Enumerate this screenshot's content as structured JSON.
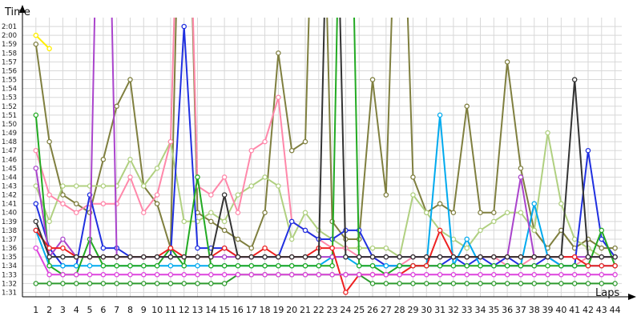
{
  "chart_data": {
    "type": "line",
    "ylabel": "Time",
    "xlabel": "Laps",
    "y_tick_labels": [
      "1:31",
      "1:32",
      "1:33",
      "1:34",
      "1:35",
      "1:36",
      "1:37",
      "1:38",
      "1:39",
      "1:40",
      "1:41",
      "1:42",
      "1:43",
      "1:44",
      "1:45",
      "1:46",
      "1:47",
      "1:48",
      "1:49",
      "1:50",
      "1:51",
      "1:52",
      "1:53",
      "1:54",
      "1:55",
      "1:56",
      "1:57",
      "1:58",
      "1:59",
      "2:00",
      "2:01"
    ],
    "x_tick_labels": [
      "1",
      "2",
      "3",
      "4",
      "5",
      "6",
      "7",
      "8",
      "9",
      "10",
      "11",
      "12",
      "13",
      "14",
      "15",
      "16",
      "17",
      "18",
      "19",
      "20",
      "21",
      "22",
      "23",
      "24",
      "25",
      "26",
      "27",
      "28",
      "29",
      "30",
      "31",
      "32",
      "33",
      "34",
      "35",
      "36",
      "37",
      "38",
      "39",
      "40",
      "41",
      "42",
      "43",
      "44"
    ],
    "ylim_seconds": [
      90.5,
      122
    ],
    "xlim": [
      0,
      44.5
    ],
    "grid": true,
    "marker": "hollow-circle",
    "series": [
      {
        "color": "#ffee00",
        "values": [
          120,
          118.5,
          null,
          null,
          null,
          null,
          null,
          null,
          null,
          null,
          null,
          null,
          null,
          null,
          null,
          null,
          null,
          null,
          null,
          null,
          null,
          null,
          null,
          null,
          null,
          null,
          null,
          null,
          null,
          null,
          null,
          null,
          null,
          null,
          null,
          null,
          null,
          null,
          null,
          null,
          null,
          null,
          null,
          null
        ]
      },
      {
        "color": "#7f7f3f",
        "values": [
          119,
          108,
          102,
          101,
          100,
          106,
          112,
          115,
          103,
          101,
          96,
          160,
          100,
          99,
          98,
          97,
          96,
          100,
          118,
          107,
          108,
          160,
          99,
          97,
          97,
          115,
          102,
          150,
          104,
          100,
          101,
          100,
          112,
          100,
          100,
          117,
          105,
          98,
          96,
          98,
          96,
          97,
          96,
          96
        ]
      },
      {
        "color": "#b0d080",
        "values": [
          103,
          99,
          103,
          103,
          103,
          103,
          103,
          106,
          103,
          105,
          108,
          99,
          99,
          100,
          99,
          102,
          103,
          104,
          103,
          97,
          100,
          98,
          97,
          96,
          96,
          96,
          96,
          95,
          102,
          100,
          98,
          97,
          96,
          98,
          99,
          100,
          100,
          98,
          109,
          101,
          97,
          96,
          95,
          95
        ]
      },
      {
        "color": "#ff88aa",
        "values": [
          107,
          102,
          101,
          100,
          101,
          101,
          101,
          104,
          100,
          102,
          108,
          160,
          103,
          102,
          104,
          100,
          107,
          108,
          113,
          99,
          98,
          97,
          96,
          96,
          95,
          95,
          94,
          94,
          95,
          95,
          95,
          95,
          95,
          95,
          95,
          94,
          94,
          95,
          95,
          94,
          94,
          95,
          95,
          95
        ]
      },
      {
        "color": "#2030e0",
        "values": [
          101,
          96,
          94,
          94,
          102,
          96,
          96,
          95,
          95,
          95,
          95,
          121,
          96,
          96,
          96,
          95,
          95,
          95,
          95,
          99,
          98,
          97,
          97,
          98,
          98,
          95,
          94,
          94,
          94,
          94,
          94,
          95,
          94,
          95,
          94,
          95,
          94,
          94,
          95,
          94,
          94,
          107,
          97,
          95
        ]
      },
      {
        "color": "#00aaee",
        "values": [
          98,
          94,
          94,
          94,
          94,
          94,
          94,
          94,
          94,
          94,
          94,
          94,
          94,
          94,
          94,
          94,
          94,
          94,
          94,
          94,
          94,
          94,
          95,
          95,
          94,
          94,
          94,
          94,
          94,
          94,
          111,
          94,
          97,
          94,
          94,
          94,
          94,
          101,
          95,
          94,
          94,
          94,
          94,
          94
        ]
      },
      {
        "color": "#22aa22",
        "values": [
          111,
          94,
          93,
          93,
          97,
          94,
          94,
          94,
          94,
          94,
          96,
          94,
          104,
          94,
          94,
          94,
          94,
          94,
          94,
          94,
          94,
          94,
          94,
          170,
          94,
          94,
          93,
          94,
          94,
          94,
          94,
          94,
          94,
          94,
          94,
          94,
          94,
          94,
          94,
          94,
          94,
          94,
          98,
          94
        ]
      },
      {
        "color": "#aa44cc",
        "values": [
          105,
          95,
          97,
          95,
          95,
          170,
          95,
          95,
          95,
          95,
          95,
          95,
          95,
          95,
          95,
          95,
          95,
          95,
          95,
          95,
          95,
          95,
          95,
          95,
          95,
          95,
          95,
          95,
          95,
          95,
          95,
          95,
          95,
          95,
          95,
          95,
          104,
          95,
          95,
          95,
          95,
          95,
          95,
          95
        ]
      },
      {
        "color": "#ee2020",
        "values": [
          98,
          96,
          96,
          95,
          95,
          95,
          95,
          95,
          95,
          95,
          96,
          95,
          95,
          95,
          96,
          95,
          95,
          96,
          95,
          95,
          95,
          96,
          96,
          91,
          93,
          93,
          93,
          93,
          94,
          94,
          98,
          95,
          95,
          95,
          95,
          95,
          95,
          95,
          95,
          95,
          95,
          94,
          94,
          94
        ]
      },
      {
        "color": "#333333",
        "values": [
          99,
          95,
          95,
          95,
          95,
          95,
          95,
          95,
          95,
          95,
          95,
          95,
          95,
          95,
          102,
          95,
          95,
          95,
          95,
          95,
          95,
          95,
          160,
          95,
          95,
          95,
          95,
          95,
          95,
          95,
          95,
          95,
          95,
          95,
          95,
          95,
          95,
          95,
          95,
          95,
          115,
          95,
          95,
          95
        ]
      },
      {
        "color": "#2d9a2d",
        "values": [
          92,
          92,
          92,
          92,
          92,
          92,
          92,
          92,
          92,
          92,
          92,
          92,
          92,
          92,
          92,
          93,
          93,
          93,
          93,
          93,
          93,
          93,
          93,
          93,
          93,
          92,
          92,
          92,
          92,
          92,
          92,
          92,
          92,
          92,
          92,
          92,
          92,
          92,
          92,
          92,
          92,
          92,
          92,
          92
        ]
      },
      {
        "color": "#dd44dd",
        "values": [
          96,
          93,
          93,
          93,
          93,
          93,
          93,
          93,
          93,
          93,
          93,
          93,
          93,
          93,
          93,
          93,
          93,
          93,
          93,
          93,
          93,
          93,
          93,
          93,
          93,
          93,
          93,
          93,
          93,
          93,
          93,
          93,
          93,
          93,
          93,
          93,
          93,
          93,
          93,
          93,
          93,
          93,
          93,
          93
        ]
      }
    ]
  }
}
